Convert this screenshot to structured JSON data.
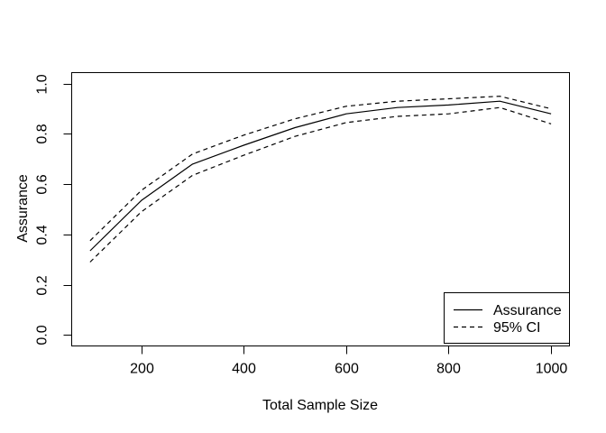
{
  "figure": {
    "background": "#ffffff",
    "axis_color": "#000000",
    "line_color": "#000000"
  },
  "chart_data": {
    "type": "line",
    "title": "",
    "xlabel": "Total Sample Size",
    "ylabel": "Assurance",
    "x": [
      100,
      200,
      300,
      400,
      500,
      600,
      700,
      800,
      900,
      1000
    ],
    "series": [
      {
        "name": "Assurance",
        "line_style": "solid",
        "color": "#000000",
        "values": [
          0.335,
          0.535,
          0.68,
          0.755,
          0.825,
          0.88,
          0.905,
          0.915,
          0.93,
          0.88
        ]
      },
      {
        "name": "95% CI upper bound",
        "line_style": "dashed",
        "color": "#000000",
        "values": [
          0.375,
          0.575,
          0.72,
          0.795,
          0.86,
          0.91,
          0.93,
          0.94,
          0.95,
          0.9
        ]
      },
      {
        "name": "95% CI lower bound",
        "line_style": "dashed",
        "color": "#000000",
        "values": [
          0.29,
          0.49,
          0.635,
          0.715,
          0.79,
          0.845,
          0.87,
          0.88,
          0.905,
          0.84
        ]
      }
    ],
    "x_ticks": [
      200,
      400,
      600,
      800,
      1000
    ],
    "y_ticks": [
      0.0,
      0.2,
      0.4,
      0.6,
      0.8,
      1.0
    ],
    "y_tick_labels": [
      "0.0",
      "0.2",
      "0.4",
      "0.6",
      "0.8",
      "1.0"
    ],
    "xlim": [
      64,
      1036
    ],
    "ylim": [
      -0.044,
      1.044
    ],
    "grid": false,
    "legend": {
      "position": "bottomright",
      "entries": [
        {
          "label": "Assurance",
          "line_style": "solid"
        },
        {
          "label": "95% CI",
          "line_style": "dashed"
        }
      ]
    }
  }
}
